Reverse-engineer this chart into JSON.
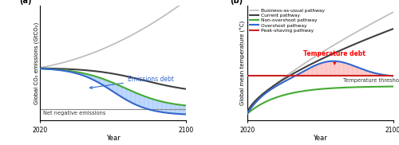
{
  "fig_width": 5.0,
  "fig_height": 1.82,
  "dpi": 100,
  "panel_a": {
    "label": "(a)",
    "xlabel": "Year",
    "ylabel": "Global CO₂ emissions (GtCO₂)",
    "bau_color": "#bbbbbb",
    "current_color": "#404040",
    "overshoot_color": "#3366cc",
    "non_overshoot_color": "#44aa33",
    "zero_line_color": "#888888",
    "fill_color": "#aaccff",
    "emissions_debt_label": "Emissions debt",
    "net_neg_label": "Net negative emissions"
  },
  "panel_b": {
    "label": "(b)",
    "xlabel": "Year",
    "ylabel": "Global mean temperature (°C)",
    "bau_color": "#bbbbbb",
    "current_color": "#404040",
    "non_overshoot_color": "#44aa33",
    "overshoot_color": "#3366cc",
    "peak_shaving_color": "#cc2222",
    "fill_color": "#ffbbbb",
    "temp_debt_label": "Temperature debt",
    "temp_threshold_label": "Temperature threshold",
    "legend_entries": [
      {
        "label": "Business-as-usual pathway",
        "color": "#bbbbbb",
        "lw": 1.2
      },
      {
        "label": "Current pathway",
        "color": "#404040",
        "lw": 1.5
      },
      {
        "label": "Non-overshoot pathway",
        "color": "#44aa33",
        "lw": 1.5
      },
      {
        "label": "Overshoot pathway",
        "color": "#3366cc",
        "lw": 1.5
      },
      {
        "label": "Peak-shaving pathway",
        "color": "#cc2222",
        "lw": 1.5
      }
    ]
  }
}
